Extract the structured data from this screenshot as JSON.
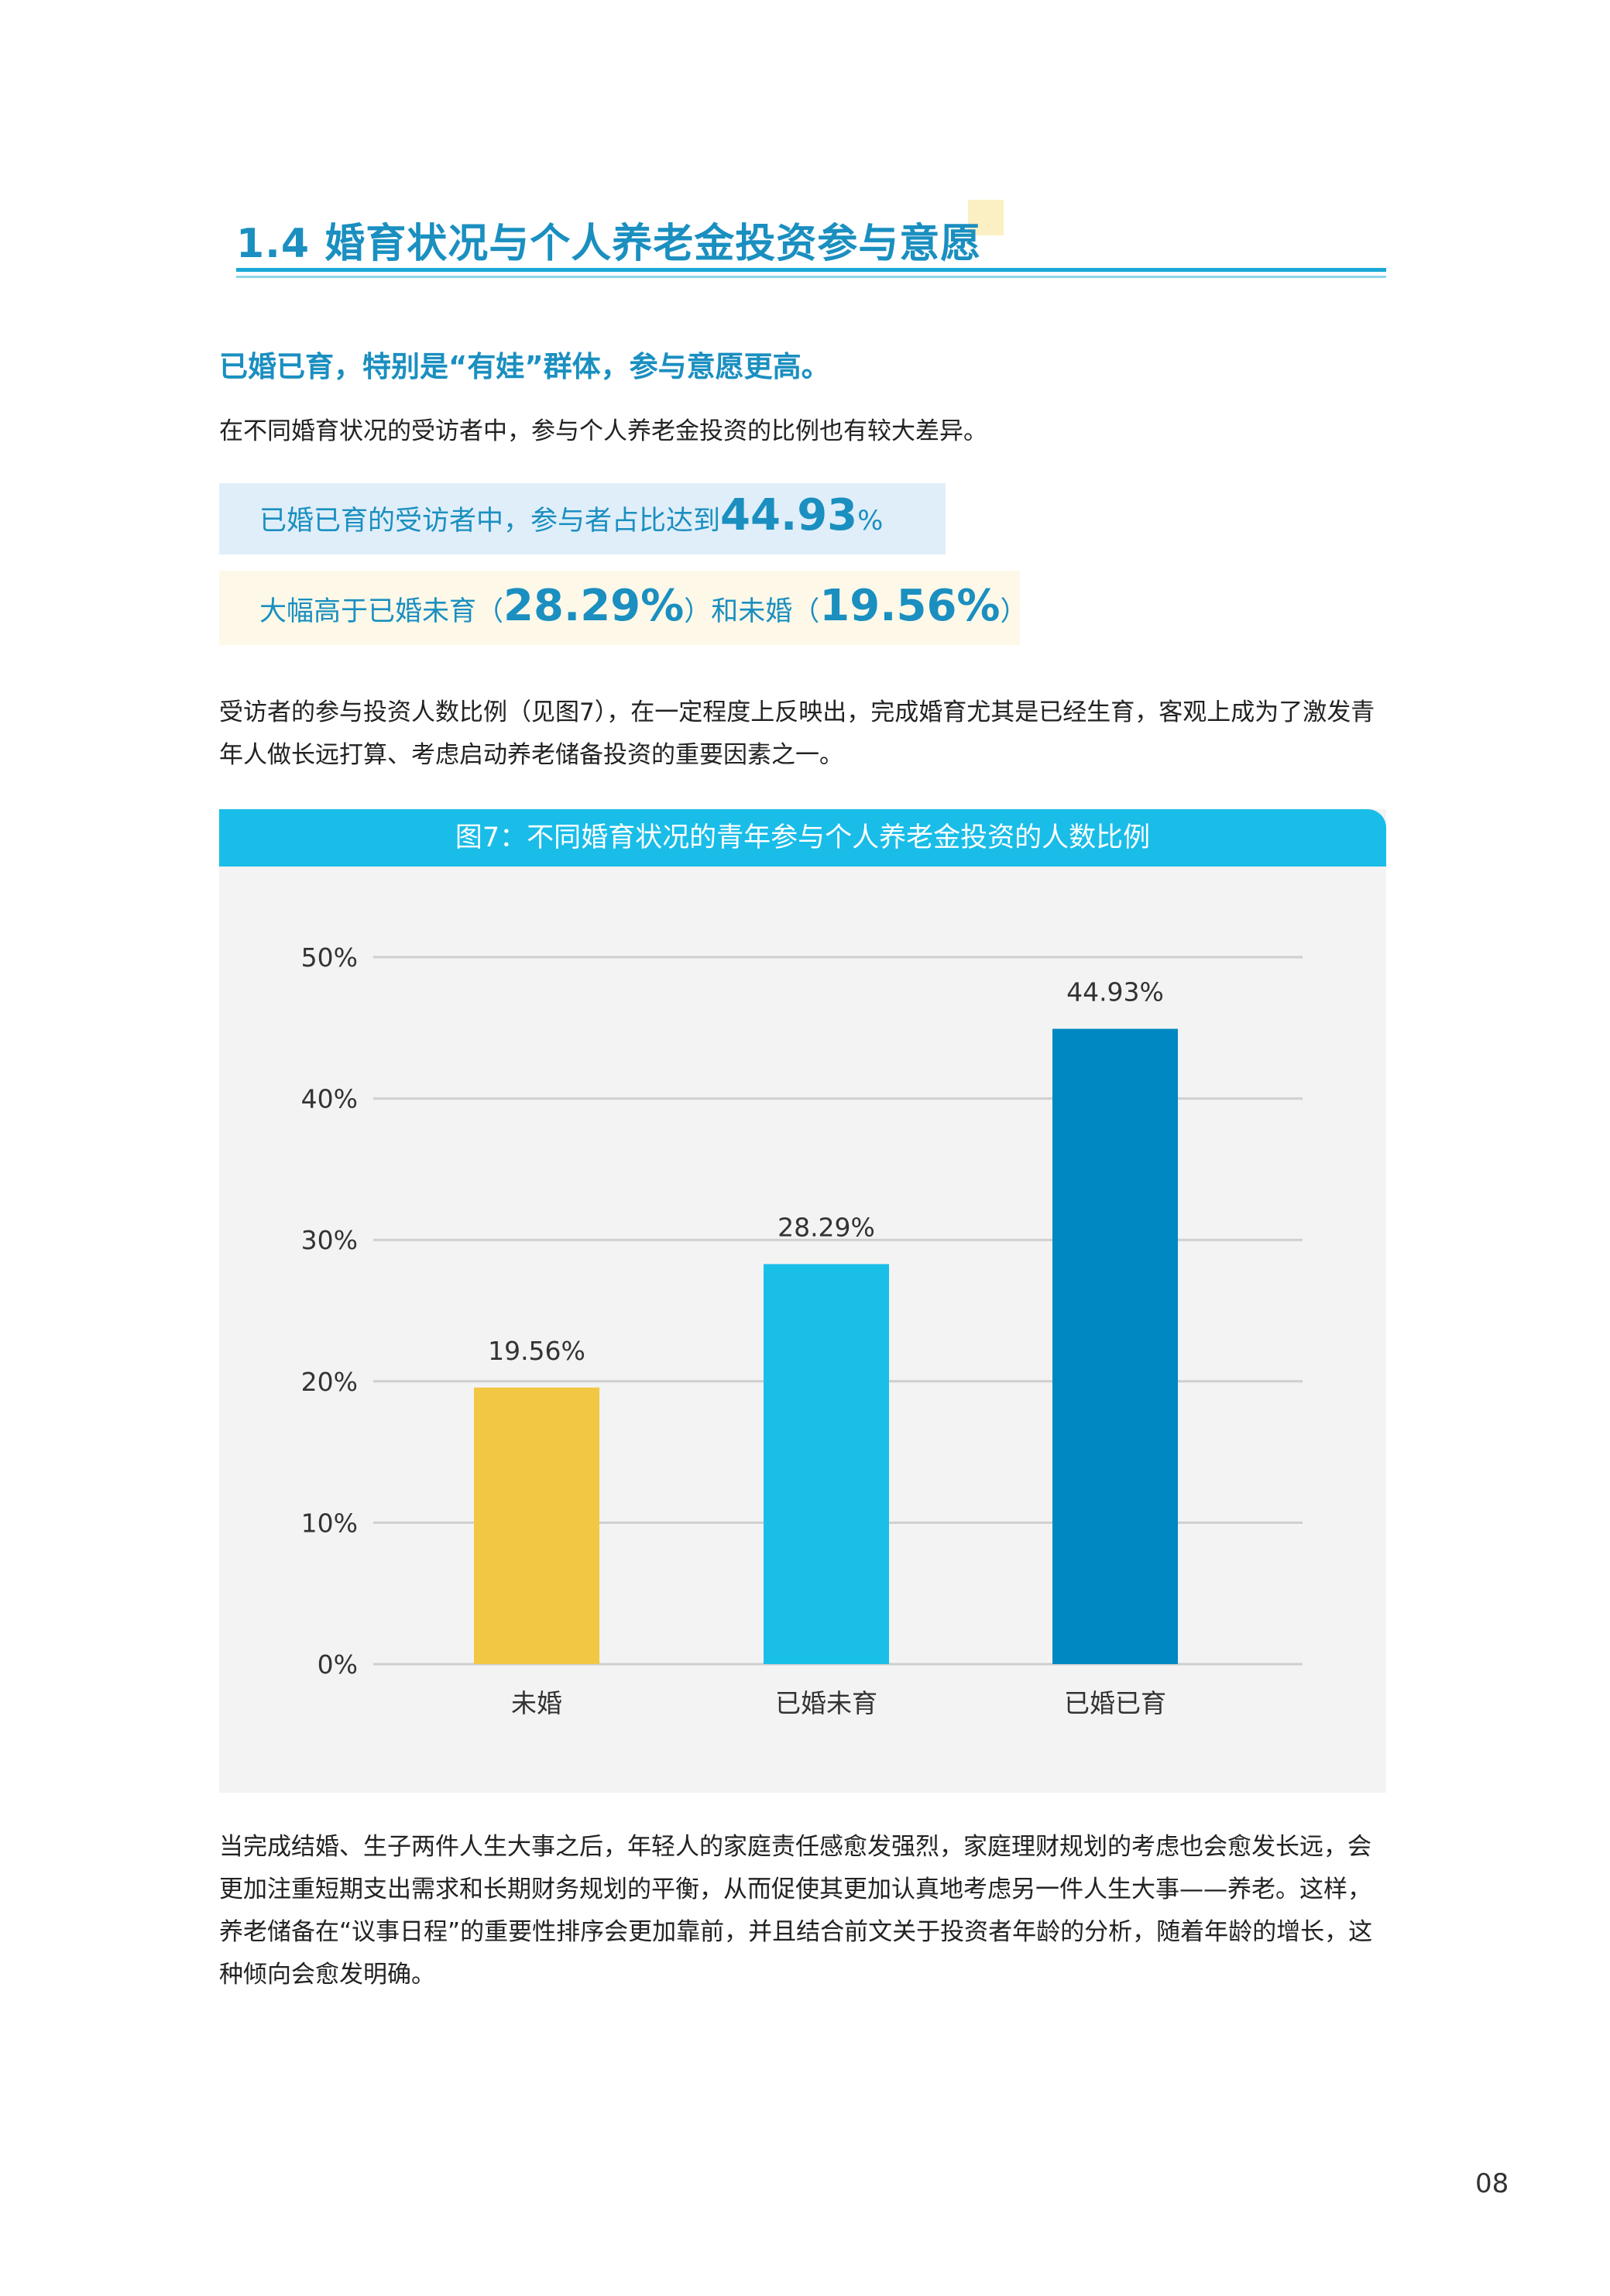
{
  "section_title": "1.4 婚育状况与个人养老金投资参与意愿",
  "subheading": "已婚已育，特别是“有娃”群体，参与意愿更高。",
  "intro": "在不同婚育状况的受访者中，参与个人养老金投资的比例也有较大差异。",
  "highlight1": {
    "text": "已婚已育的受访者中，参与者占比达到",
    "value": "44.93",
    "unit": "%"
  },
  "highlight2": {
    "text_a": "大幅高于已婚未育（",
    "value_a": "28.29%",
    "text_b": "）和未婚（",
    "value_b": "19.56%",
    "text_c": "）"
  },
  "paragraph1": "受访者的参与投资人数比例（见图7），在一定程度上反映出，完成婚育尤其是已经生育，客观上成为了激发青年人做长远打算、考虑启动养老储备投资的重要因素之一。",
  "chart_data": {
    "type": "bar",
    "title": "图7：不同婚育状况的青年参与个人养老金投资的人数比例",
    "categories": [
      "未婚",
      "已婚未育",
      "已婚已育"
    ],
    "values": [
      19.56,
      28.29,
      44.93
    ],
    "data_labels": [
      "19.56%",
      "28.29%",
      "44.93%"
    ],
    "colors": [
      "#F2C744",
      "#1ABFE8",
      "#0088C2"
    ],
    "ylim": [
      0,
      50
    ],
    "yticks": [
      "0%",
      "10%",
      "20%",
      "30%",
      "40%",
      "50%"
    ],
    "grid": true,
    "xlabel": "",
    "ylabel": ""
  },
  "paragraph2": "当完成结婚、生子两件人生大事之后，年轻人的家庭责任感愈发强烈，家庭理财规划的考虑也会愈发长远，会更加注重短期支出需求和长期财务规划的平衡，从而促使其更加认真地考虑另一件人生大事——养老。这样，养老储备在“议事日程”的重要性排序会更加靠前，并且结合前文关于投资者年龄的分析，随着年龄的增长，这种倾向会愈发明确。",
  "page_number": "08"
}
